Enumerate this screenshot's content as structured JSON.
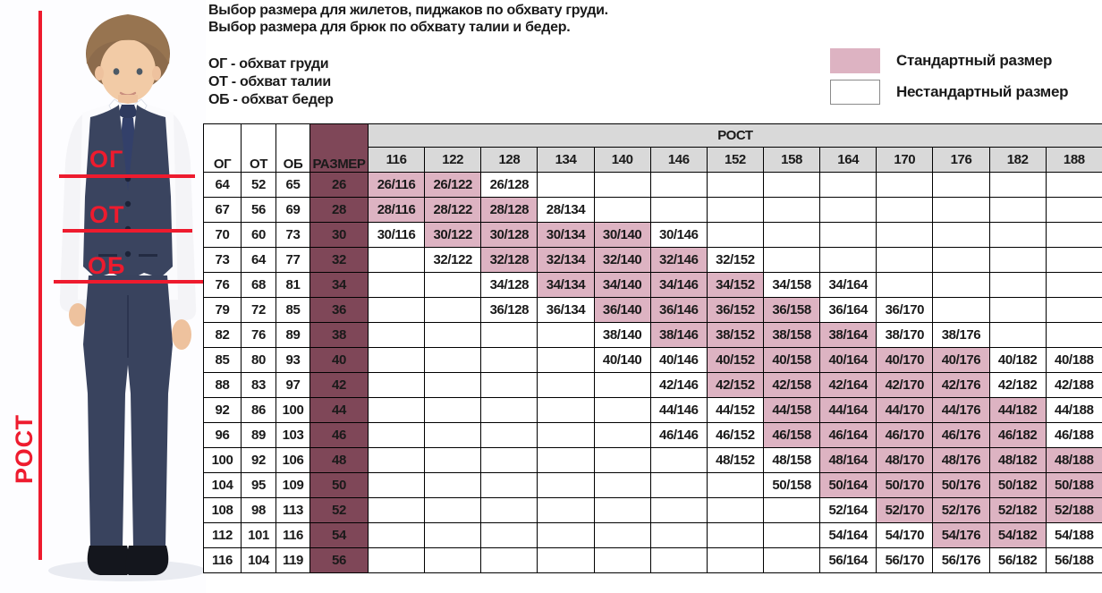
{
  "intro": {
    "line1": "Выбор размера для жилетов, пиджаков по обхвату груди.",
    "line2": "Выбор размера для брюк по обхвату талии и бедер.",
    "abbreviations": [
      "ОГ - обхват груди",
      "ОТ - обхват талии",
      "ОБ - обхват бедер"
    ]
  },
  "figure": {
    "chest_label": "ОГ",
    "waist_label": "ОТ",
    "hips_label": "ОБ",
    "height_label": "РОСТ"
  },
  "legend": {
    "standard_label": "Стандартный размер",
    "nonstandard_label": "Нестандартный размер",
    "standard_color": "#ddb3c2",
    "nonstandard_color": "#ffffff"
  },
  "colors": {
    "accent_red": "#ee1b2e",
    "size_column_maroon": "#7f4758",
    "header_gray": "#d9d9d9",
    "standard_pink": "#ddb3c2",
    "table_border": "#000000"
  },
  "table": {
    "headers": {
      "chest": "ОГ",
      "waist": "ОТ",
      "hips": "ОБ",
      "size": "РАЗМЕР",
      "height_group": "РОСТ"
    },
    "heights": [
      "116",
      "122",
      "128",
      "134",
      "140",
      "146",
      "152",
      "158",
      "164",
      "170",
      "176",
      "182",
      "188"
    ],
    "rows": [
      {
        "og": "64",
        "ot": "52",
        "ob": "65",
        "size": "26",
        "cells": [
          {
            "h": "116",
            "label": "26/116",
            "standard": true
          },
          {
            "h": "122",
            "label": "26/122",
            "standard": true
          },
          {
            "h": "128",
            "label": "26/128",
            "standard": false
          }
        ]
      },
      {
        "og": "67",
        "ot": "56",
        "ob": "69",
        "size": "28",
        "cells": [
          {
            "h": "116",
            "label": "28/116",
            "standard": true
          },
          {
            "h": "122",
            "label": "28/122",
            "standard": true
          },
          {
            "h": "128",
            "label": "28/128",
            "standard": true
          },
          {
            "h": "134",
            "label": "28/134",
            "standard": false
          }
        ]
      },
      {
        "og": "70",
        "ot": "60",
        "ob": "73",
        "size": "30",
        "cells": [
          {
            "h": "116",
            "label": "30/116",
            "standard": false
          },
          {
            "h": "122",
            "label": "30/122",
            "standard": true
          },
          {
            "h": "128",
            "label": "30/128",
            "standard": true
          },
          {
            "h": "134",
            "label": "30/134",
            "standard": true
          },
          {
            "h": "140",
            "label": "30/140",
            "standard": true
          },
          {
            "h": "146",
            "label": "30/146",
            "standard": false
          }
        ]
      },
      {
        "og": "73",
        "ot": "64",
        "ob": "77",
        "size": "32",
        "cells": [
          {
            "h": "122",
            "label": "32/122",
            "standard": false
          },
          {
            "h": "128",
            "label": "32/128",
            "standard": true
          },
          {
            "h": "134",
            "label": "32/134",
            "standard": true
          },
          {
            "h": "140",
            "label": "32/140",
            "standard": true
          },
          {
            "h": "146",
            "label": "32/146",
            "standard": true
          },
          {
            "h": "152",
            "label": "32/152",
            "standard": false
          }
        ]
      },
      {
        "og": "76",
        "ot": "68",
        "ob": "81",
        "size": "34",
        "cells": [
          {
            "h": "128",
            "label": "34/128",
            "standard": false
          },
          {
            "h": "134",
            "label": "34/134",
            "standard": true
          },
          {
            "h": "140",
            "label": "34/140",
            "standard": true
          },
          {
            "h": "146",
            "label": "34/146",
            "standard": true
          },
          {
            "h": "152",
            "label": "34/152",
            "standard": true
          },
          {
            "h": "158",
            "label": "34/158",
            "standard": false
          },
          {
            "h": "164",
            "label": "34/164",
            "standard": false
          }
        ]
      },
      {
        "og": "79",
        "ot": "72",
        "ob": "85",
        "size": "36",
        "cells": [
          {
            "h": "128",
            "label": "36/128",
            "standard": false
          },
          {
            "h": "134",
            "label": "36/134",
            "standard": false
          },
          {
            "h": "140",
            "label": "36/140",
            "standard": true
          },
          {
            "h": "146",
            "label": "36/146",
            "standard": true
          },
          {
            "h": "152",
            "label": "36/152",
            "standard": true
          },
          {
            "h": "158",
            "label": "36/158",
            "standard": true
          },
          {
            "h": "164",
            "label": "36/164",
            "standard": false
          },
          {
            "h": "170",
            "label": "36/170",
            "standard": false
          }
        ]
      },
      {
        "og": "82",
        "ot": "76",
        "ob": "89",
        "size": "38",
        "cells": [
          {
            "h": "140",
            "label": "38/140",
            "standard": false
          },
          {
            "h": "146",
            "label": "38/146",
            "standard": true
          },
          {
            "h": "152",
            "label": "38/152",
            "standard": true
          },
          {
            "h": "158",
            "label": "38/158",
            "standard": true
          },
          {
            "h": "164",
            "label": "38/164",
            "standard": true
          },
          {
            "h": "170",
            "label": "38/170",
            "standard": false
          },
          {
            "h": "176",
            "label": "38/176",
            "standard": false
          }
        ]
      },
      {
        "og": "85",
        "ot": "80",
        "ob": "93",
        "size": "40",
        "cells": [
          {
            "h": "140",
            "label": "40/140",
            "standard": false
          },
          {
            "h": "146",
            "label": "40/146",
            "standard": false
          },
          {
            "h": "152",
            "label": "40/152",
            "standard": true
          },
          {
            "h": "158",
            "label": "40/158",
            "standard": true
          },
          {
            "h": "164",
            "label": "40/164",
            "standard": true
          },
          {
            "h": "170",
            "label": "40/170",
            "standard": true
          },
          {
            "h": "176",
            "label": "40/176",
            "standard": true
          },
          {
            "h": "182",
            "label": "40/182",
            "standard": false
          },
          {
            "h": "188",
            "label": "40/188",
            "standard": false
          }
        ]
      },
      {
        "og": "88",
        "ot": "83",
        "ob": "97",
        "size": "42",
        "cells": [
          {
            "h": "146",
            "label": "42/146",
            "standard": false
          },
          {
            "h": "152",
            "label": "42/152",
            "standard": true
          },
          {
            "h": "158",
            "label": "42/158",
            "standard": true
          },
          {
            "h": "164",
            "label": "42/164",
            "standard": true
          },
          {
            "h": "170",
            "label": "42/170",
            "standard": true
          },
          {
            "h": "176",
            "label": "42/176",
            "standard": true
          },
          {
            "h": "182",
            "label": "42/182",
            "standard": false
          },
          {
            "h": "188",
            "label": "42/188",
            "standard": false
          }
        ]
      },
      {
        "og": "92",
        "ot": "86",
        "ob": "100",
        "size": "44",
        "cells": [
          {
            "h": "146",
            "label": "44/146",
            "standard": false
          },
          {
            "h": "152",
            "label": "44/152",
            "standard": false
          },
          {
            "h": "158",
            "label": "44/158",
            "standard": true
          },
          {
            "h": "164",
            "label": "44/164",
            "standard": true
          },
          {
            "h": "170",
            "label": "44/170",
            "standard": true
          },
          {
            "h": "176",
            "label": "44/176",
            "standard": true
          },
          {
            "h": "182",
            "label": "44/182",
            "standard": true
          },
          {
            "h": "188",
            "label": "44/188",
            "standard": false
          }
        ]
      },
      {
        "og": "96",
        "ot": "89",
        "ob": "103",
        "size": "46",
        "cells": [
          {
            "h": "146",
            "label": "46/146",
            "standard": false
          },
          {
            "h": "152",
            "label": "46/152",
            "standard": false
          },
          {
            "h": "158",
            "label": "46/158",
            "standard": true
          },
          {
            "h": "164",
            "label": "46/164",
            "standard": true
          },
          {
            "h": "170",
            "label": "46/170",
            "standard": true
          },
          {
            "h": "176",
            "label": "46/176",
            "standard": true
          },
          {
            "h": "182",
            "label": "46/182",
            "standard": true
          },
          {
            "h": "188",
            "label": "46/188",
            "standard": false
          }
        ]
      },
      {
        "og": "100",
        "ot": "92",
        "ob": "106",
        "size": "48",
        "cells": [
          {
            "h": "152",
            "label": "48/152",
            "standard": false
          },
          {
            "h": "158",
            "label": "48/158",
            "standard": false
          },
          {
            "h": "164",
            "label": "48/164",
            "standard": true
          },
          {
            "h": "170",
            "label": "48/170",
            "standard": true
          },
          {
            "h": "176",
            "label": "48/176",
            "standard": true
          },
          {
            "h": "182",
            "label": "48/182",
            "standard": true
          },
          {
            "h": "188",
            "label": "48/188",
            "standard": true
          }
        ]
      },
      {
        "og": "104",
        "ot": "95",
        "ob": "109",
        "size": "50",
        "cells": [
          {
            "h": "158",
            "label": "50/158",
            "standard": false
          },
          {
            "h": "164",
            "label": "50/164",
            "standard": true
          },
          {
            "h": "170",
            "label": "50/170",
            "standard": true
          },
          {
            "h": "176",
            "label": "50/176",
            "standard": true
          },
          {
            "h": "182",
            "label": "50/182",
            "standard": true
          },
          {
            "h": "188",
            "label": "50/188",
            "standard": true
          }
        ]
      },
      {
        "og": "108",
        "ot": "98",
        "ob": "113",
        "size": "52",
        "cells": [
          {
            "h": "164",
            "label": "52/164",
            "standard": false
          },
          {
            "h": "170",
            "label": "52/170",
            "standard": true
          },
          {
            "h": "176",
            "label": "52/176",
            "standard": true
          },
          {
            "h": "182",
            "label": "52/182",
            "standard": true
          },
          {
            "h": "188",
            "label": "52/188",
            "standard": true
          }
        ]
      },
      {
        "og": "112",
        "ot": "101",
        "ob": "116",
        "size": "54",
        "cells": [
          {
            "h": "164",
            "label": "54/164",
            "standard": false
          },
          {
            "h": "170",
            "label": "54/170",
            "standard": false
          },
          {
            "h": "176",
            "label": "54/176",
            "standard": true
          },
          {
            "h": "182",
            "label": "54/182",
            "standard": true
          },
          {
            "h": "188",
            "label": "54/188",
            "standard": false
          }
        ]
      },
      {
        "og": "116",
        "ot": "104",
        "ob": "119",
        "size": "56",
        "cells": [
          {
            "h": "164",
            "label": "56/164",
            "standard": false
          },
          {
            "h": "170",
            "label": "56/170",
            "standard": false
          },
          {
            "h": "176",
            "label": "56/176",
            "standard": false
          },
          {
            "h": "182",
            "label": "56/182",
            "standard": false
          },
          {
            "h": "188",
            "label": "56/188",
            "standard": false
          }
        ]
      }
    ]
  }
}
